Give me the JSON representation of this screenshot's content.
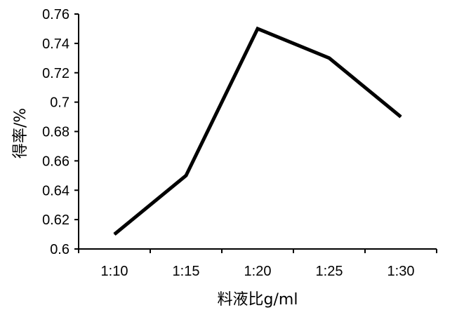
{
  "chart_data": {
    "type": "line",
    "categories": [
      "1:10",
      "1:15",
      "1:20",
      "1:25",
      "1:30"
    ],
    "series": [
      {
        "values": [
          0.61,
          0.65,
          0.75,
          0.73,
          0.69
        ]
      }
    ],
    "xlabel": "料液比g/ml",
    "ylabel": "得率/%",
    "ylim": [
      0.6,
      0.76
    ],
    "yticks": [
      "0.6",
      "0.62",
      "0.64",
      "0.66",
      "0.68",
      "0.7",
      "0.72",
      "0.74",
      "0.76"
    ],
    "yticks_values": [
      0.6,
      0.62,
      0.64,
      0.66,
      0.68,
      0.7,
      0.72,
      0.74,
      0.76
    ],
    "grid": false,
    "legend": "none",
    "colors": {
      "line": "#000000",
      "axis": "#000000"
    }
  }
}
